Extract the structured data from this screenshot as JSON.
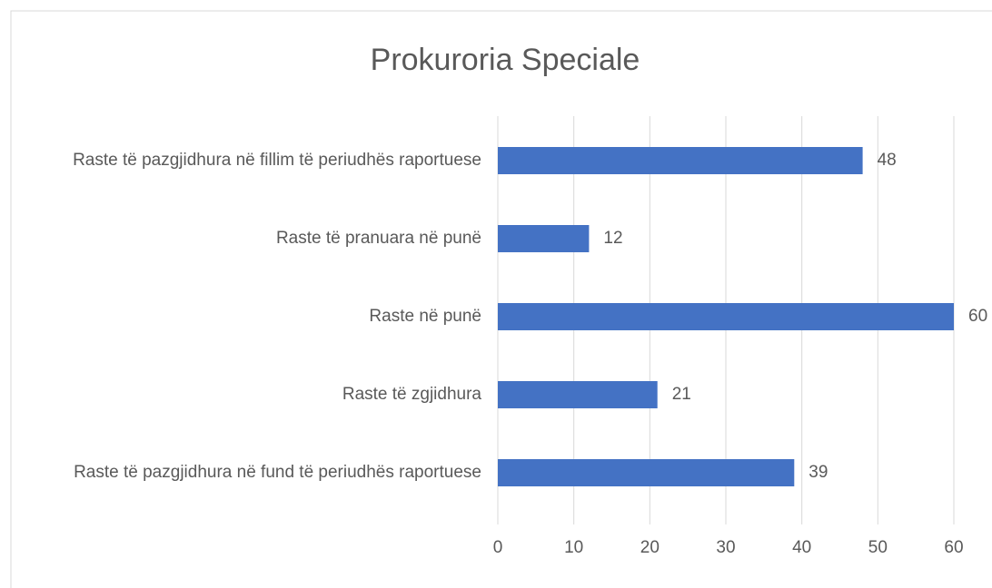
{
  "chart_data": {
    "type": "bar",
    "orientation": "horizontal",
    "title": "Prokuroria Speciale",
    "categories": [
      "Raste të pazgjidhura në fillim të periudhës raportuese",
      "Raste të pranuara në punë",
      "Raste në punë",
      "Raste të zgjidhura",
      "Raste të pazgjidhura në fund të periudhës raportuese"
    ],
    "values": [
      48,
      12,
      60,
      21,
      39
    ],
    "color": "#4472c4",
    "xlim": [
      0,
      60
    ],
    "xticks": [
      0,
      10,
      20,
      30,
      40,
      50,
      60
    ],
    "grid": true
  }
}
